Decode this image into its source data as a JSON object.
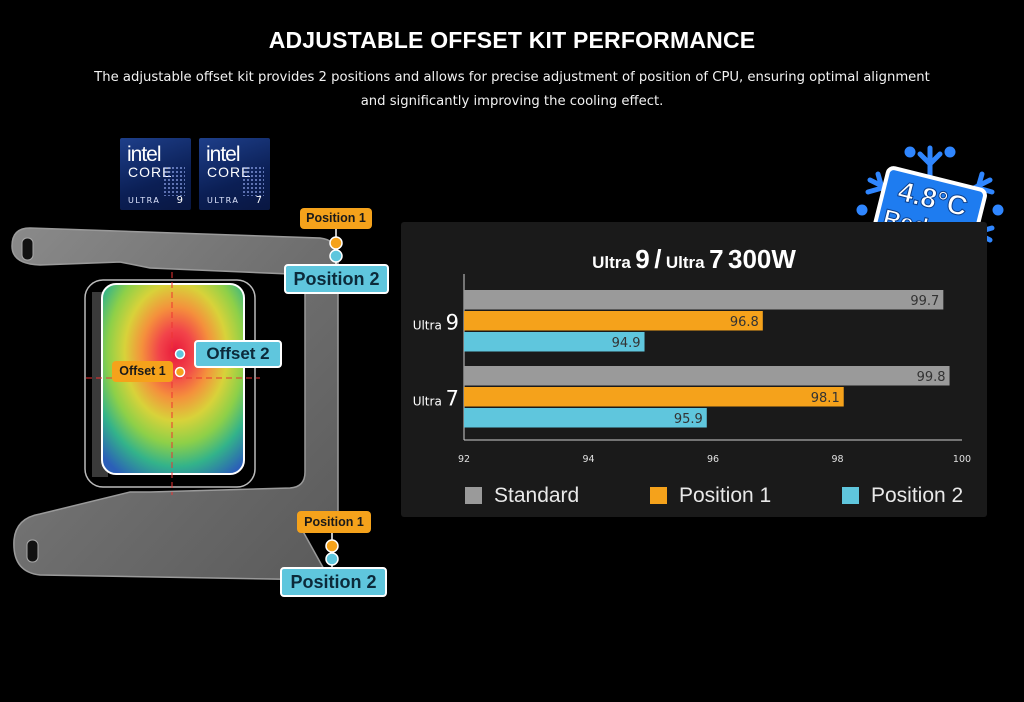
{
  "header": {
    "title": "ADJUSTABLE OFFSET KIT PERFORMANCE",
    "subtitle_line1": "The adjustable offset kit provides 2 positions and allows for precise adjustment of position of CPU, ensuring optimal alignment",
    "subtitle_line2": "and significantly improving the cooling effect."
  },
  "badges": [
    {
      "brand": "intel",
      "line": "CORE",
      "tier": "ULTRA",
      "num": "9"
    },
    {
      "brand": "intel",
      "line": "CORE",
      "tier": "ULTRA",
      "num": "7"
    }
  ],
  "diagram": {
    "top_position1": "Position 1",
    "top_position2": "Position 2",
    "bottom_position1": "Position 1",
    "bottom_position2": "Position 2",
    "offset1": "Offset 1",
    "offset2": "Offset 2"
  },
  "reduce_badge": {
    "value": "4.8°C",
    "label": "Reduce"
  },
  "colors": {
    "standard": "#9a9a9a",
    "position1": "#f5a21b",
    "position2": "#5fc6dd"
  },
  "chart_data": {
    "type": "bar",
    "orientation": "horizontal",
    "title_parts": [
      "Ultra",
      "9",
      "/",
      "Ultra",
      "7",
      "300W"
    ],
    "categories": [
      {
        "prefix": "Ultra",
        "num": "9"
      },
      {
        "prefix": "Ultra",
        "num": "7"
      }
    ],
    "series": [
      {
        "name": "Standard",
        "values": [
          99.7,
          99.8
        ]
      },
      {
        "name": "Position 1",
        "values": [
          96.8,
          98.1
        ]
      },
      {
        "name": "Position 2",
        "values": [
          94.9,
          95.9
        ]
      }
    ],
    "xlim": [
      92,
      100
    ],
    "xticks": [
      "92",
      "94",
      "96",
      "98",
      "100"
    ],
    "legend_position": "bottom"
  }
}
